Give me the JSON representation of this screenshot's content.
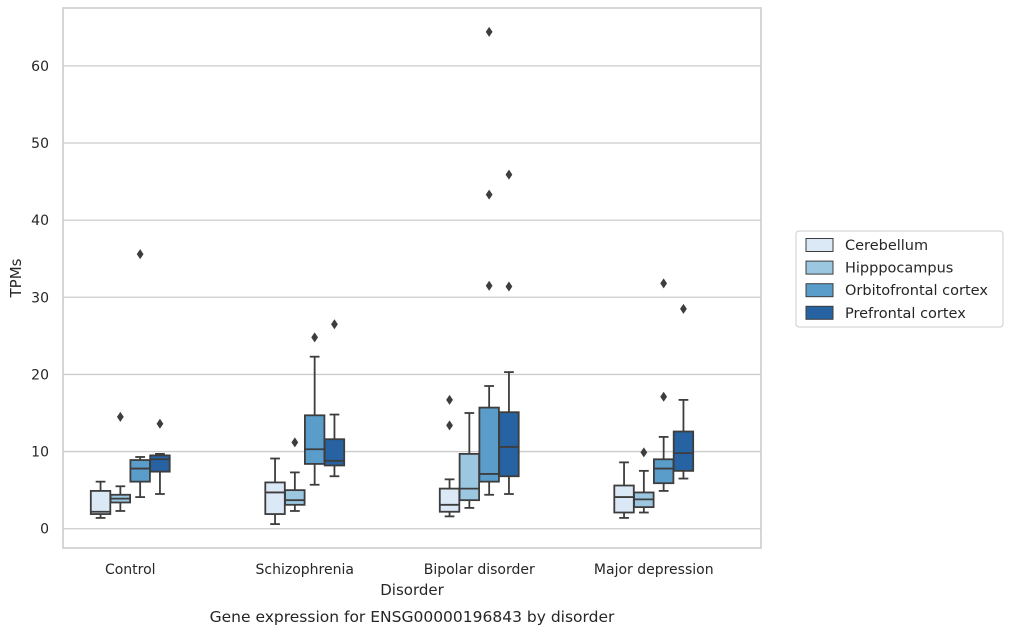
{
  "caption": "Gene expression for ENSG00000196843 by disorder",
  "chart_data": {
    "type": "box",
    "title": "",
    "xlabel": "Disorder",
    "ylabel": "TPMs",
    "ylim": [
      -2.5,
      67.5
    ],
    "yticks": [
      0,
      10,
      20,
      30,
      40,
      50,
      60
    ],
    "grid": "horizontal",
    "legend_position": "right",
    "categories": [
      "Control",
      "Schizophrenia",
      "Bipolar disorder",
      "Major depression"
    ],
    "series": [
      {
        "name": "Cerebellum",
        "color": "#dbe9f6",
        "boxes": [
          {
            "whislo": 1.4,
            "q1": 1.9,
            "med": 2.2,
            "q3": 4.9,
            "whishi": 6.1,
            "fliers": []
          },
          {
            "whislo": 0.6,
            "q1": 1.9,
            "med": 4.7,
            "q3": 6.0,
            "whishi": 9.1,
            "fliers": []
          },
          {
            "whislo": 1.6,
            "q1": 2.2,
            "med": 3.1,
            "q3": 5.2,
            "whishi": 6.4,
            "fliers": [
              13.4,
              16.7
            ]
          },
          {
            "whislo": 1.4,
            "q1": 2.1,
            "med": 4.1,
            "q3": 5.6,
            "whishi": 8.6,
            "fliers": []
          }
        ]
      },
      {
        "name": "Hipppocampus",
        "color": "#9cc7e0",
        "boxes": [
          {
            "whislo": 2.3,
            "q1": 3.4,
            "med": 3.9,
            "q3": 4.4,
            "whishi": 5.5,
            "fliers": [
              14.5
            ]
          },
          {
            "whislo": 2.3,
            "q1": 3.1,
            "med": 3.7,
            "q3": 5.0,
            "whishi": 7.3,
            "fliers": [
              11.2
            ]
          },
          {
            "whislo": 2.7,
            "q1": 3.7,
            "med": 5.2,
            "q3": 9.7,
            "whishi": 15.0,
            "fliers": []
          },
          {
            "whislo": 2.1,
            "q1": 2.8,
            "med": 3.8,
            "q3": 4.7,
            "whishi": 7.5,
            "fliers": [
              9.9
            ]
          }
        ]
      },
      {
        "name": "Orbitofrontal cortex",
        "color": "#5a9dcb",
        "boxes": [
          {
            "whislo": 4.1,
            "q1": 6.1,
            "med": 7.8,
            "q3": 8.9,
            "whishi": 9.3,
            "fliers": [
              35.6
            ]
          },
          {
            "whislo": 5.7,
            "q1": 8.4,
            "med": 10.3,
            "q3": 14.7,
            "whishi": 22.3,
            "fliers": [
              24.8
            ]
          },
          {
            "whislo": 4.4,
            "q1": 6.1,
            "med": 7.1,
            "q3": 15.7,
            "whishi": 18.5,
            "fliers": [
              31.5,
              43.3,
              64.4
            ]
          },
          {
            "whislo": 4.9,
            "q1": 5.9,
            "med": 7.8,
            "q3": 9.0,
            "whishi": 11.9,
            "fliers": [
              17.1,
              31.8
            ]
          }
        ]
      },
      {
        "name": "Prefrontal cortex",
        "color": "#2763a3",
        "boxes": [
          {
            "whislo": 4.5,
            "q1": 7.4,
            "med": 9.0,
            "q3": 9.5,
            "whishi": 9.7,
            "fliers": [
              13.6
            ]
          },
          {
            "whislo": 6.8,
            "q1": 8.2,
            "med": 8.8,
            "q3": 11.6,
            "whishi": 14.8,
            "fliers": [
              26.5
            ]
          },
          {
            "whislo": 4.5,
            "q1": 6.8,
            "med": 10.6,
            "q3": 15.1,
            "whishi": 20.3,
            "fliers": [
              31.4,
              45.9
            ]
          },
          {
            "whislo": 6.5,
            "q1": 7.5,
            "med": 9.8,
            "q3": 12.6,
            "whishi": 16.7,
            "fliers": [
              28.5
            ]
          }
        ]
      }
    ]
  }
}
